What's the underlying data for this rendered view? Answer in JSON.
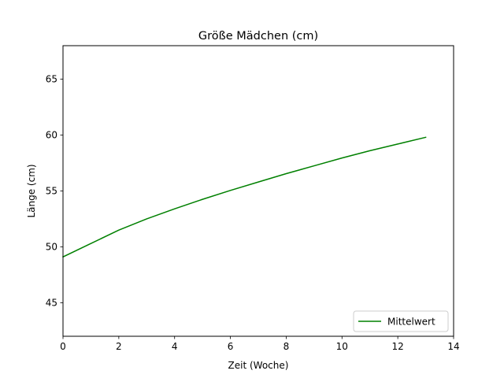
{
  "chart_data": {
    "type": "line",
    "title": "Größe Mädchen (cm)",
    "xlabel": "Zeit (Woche)",
    "ylabel": "Länge (cm)",
    "xlim": [
      0,
      14
    ],
    "ylim": [
      42,
      68
    ],
    "xticks": [
      0,
      2,
      4,
      6,
      8,
      10,
      12,
      14
    ],
    "yticks": [
      45,
      50,
      55,
      60,
      65
    ],
    "grid": false,
    "legend_position": "lower-right",
    "series": [
      {
        "name": "Mittelwert",
        "color": "#008000",
        "x": [
          0,
          1,
          2,
          3,
          4,
          5,
          6,
          7,
          8,
          9,
          10,
          11,
          12,
          13
        ],
        "y": [
          49.1,
          50.3,
          51.5,
          52.5,
          53.4,
          54.25,
          55.05,
          55.8,
          56.55,
          57.25,
          57.95,
          58.6,
          59.2,
          59.8
        ]
      }
    ]
  }
}
